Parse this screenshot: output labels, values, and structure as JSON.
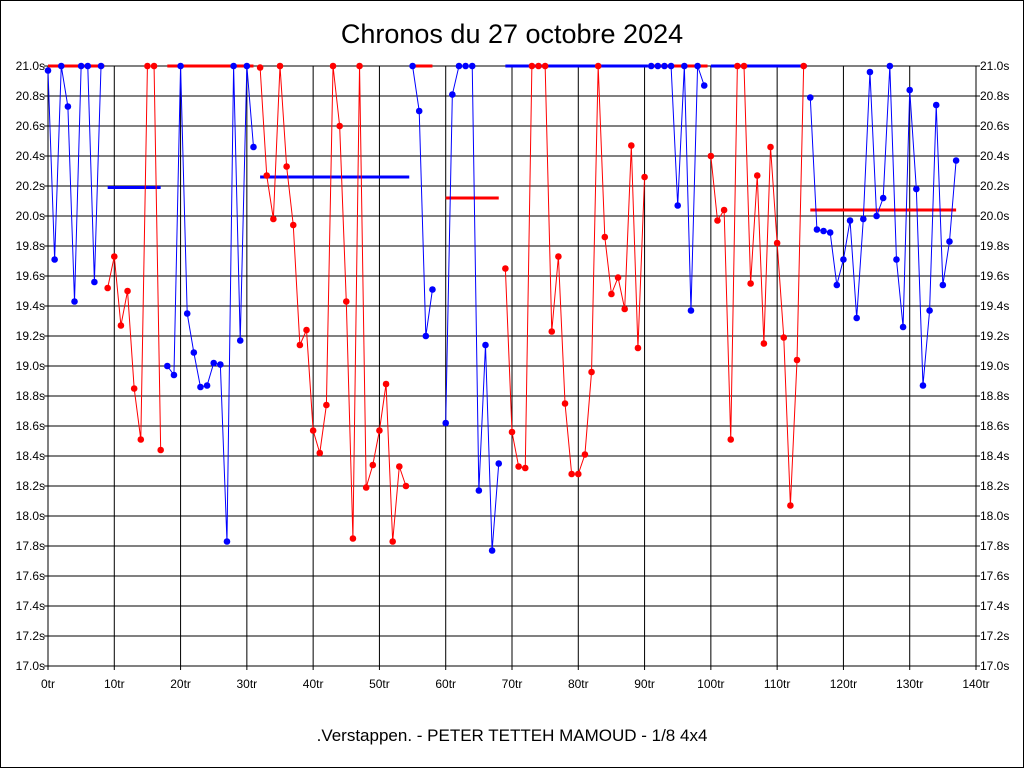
{
  "chart_data": {
    "type": "line",
    "title": "Chronos du 27 octobre 2024",
    "caption": ".Verstappen. - PETER TETTEH MAMOUD - 1/8 4x4",
    "xlabel": "",
    "ylabel": "",
    "xlim": [
      0,
      140
    ],
    "ylim": [
      17.0,
      21.0
    ],
    "grid": true,
    "legend": "none",
    "x_ticks": [
      {
        "value": 0,
        "label": "0tr"
      },
      {
        "value": 10,
        "label": "10tr"
      },
      {
        "value": 20,
        "label": "20tr"
      },
      {
        "value": 30,
        "label": "30tr"
      },
      {
        "value": 40,
        "label": "40tr"
      },
      {
        "value": 50,
        "label": "50tr"
      },
      {
        "value": 60,
        "label": "60tr"
      },
      {
        "value": 70,
        "label": "70tr"
      },
      {
        "value": 80,
        "label": "80tr"
      },
      {
        "value": 90,
        "label": "90tr"
      },
      {
        "value": 100,
        "label": "100tr"
      },
      {
        "value": 110,
        "label": "110tr"
      },
      {
        "value": 120,
        "label": "120tr"
      },
      {
        "value": 130,
        "label": "130tr"
      },
      {
        "value": 140,
        "label": "140tr"
      }
    ],
    "y_ticks": [
      {
        "value": 17.0,
        "label": "17.0s"
      },
      {
        "value": 17.2,
        "label": "17.2s"
      },
      {
        "value": 17.4,
        "label": "17.4s"
      },
      {
        "value": 17.6,
        "label": "17.6s"
      },
      {
        "value": 17.8,
        "label": "17.8s"
      },
      {
        "value": 18.0,
        "label": "18.0s"
      },
      {
        "value": 18.2,
        "label": "18.2s"
      },
      {
        "value": 18.4,
        "label": "18.4s"
      },
      {
        "value": 18.6,
        "label": "18.6s"
      },
      {
        "value": 18.8,
        "label": "18.8s"
      },
      {
        "value": 19.0,
        "label": "19.0s"
      },
      {
        "value": 19.2,
        "label": "19.2s"
      },
      {
        "value": 19.4,
        "label": "19.4s"
      },
      {
        "value": 19.6,
        "label": "19.6s"
      },
      {
        "value": 19.8,
        "label": "19.8s"
      },
      {
        "value": 20.0,
        "label": "20.0s"
      },
      {
        "value": 20.2,
        "label": "20.2s"
      },
      {
        "value": 20.4,
        "label": "20.4s"
      },
      {
        "value": 20.6,
        "label": "20.6s"
      },
      {
        "value": 20.8,
        "label": "20.8s"
      },
      {
        "value": 21.0,
        "label": "21.0s"
      }
    ],
    "series": [
      {
        "color": "#0000ff",
        "x": [
          0,
          1,
          2,
          3,
          4,
          5,
          6,
          7,
          8
        ],
        "y": [
          20.97,
          19.71,
          21.0,
          20.73,
          19.43,
          21.0,
          21.0,
          19.56,
          21.0
        ]
      },
      {
        "color": "#ff0000",
        "x": [
          9,
          10,
          11,
          12,
          13,
          14,
          15,
          16,
          17
        ],
        "y": [
          19.52,
          19.73,
          19.27,
          19.5,
          18.85,
          18.51,
          21.0,
          21.0,
          18.44
        ]
      },
      {
        "color": "#0000ff",
        "x": [
          18,
          19,
          20,
          21,
          22,
          23,
          24,
          25,
          26,
          27,
          28,
          29,
          30,
          31
        ],
        "y": [
          19.0,
          18.94,
          21.0,
          19.35,
          19.09,
          18.86,
          18.87,
          19.02,
          19.01,
          17.83,
          21.0,
          19.17,
          21.0,
          20.46
        ]
      },
      {
        "color": "#ff0000",
        "x": [
          32,
          33,
          34,
          35,
          36,
          37,
          38,
          39,
          40,
          41,
          42,
          43,
          44,
          45,
          46,
          47,
          48,
          49,
          50,
          51,
          52,
          53,
          54
        ],
        "y": [
          20.99,
          20.27,
          19.98,
          21.0,
          20.33,
          19.94,
          19.14,
          19.24,
          18.57,
          18.42,
          18.74,
          21.0,
          20.6,
          19.43,
          17.85,
          21.0,
          18.19,
          18.34,
          18.57,
          18.88,
          17.83,
          18.33,
          18.2
        ]
      },
      {
        "color": "#0000ff",
        "x": [
          55,
          56,
          57,
          58
        ],
        "y": [
          21.0,
          20.7,
          19.2,
          19.51
        ]
      },
      {
        "color": "#0000ff",
        "x": [
          60,
          61,
          62,
          63,
          64,
          65,
          66,
          67,
          68
        ],
        "y": [
          18.62,
          20.81,
          21.0,
          21.0,
          21.0,
          18.17,
          19.14,
          17.77,
          18.35
        ]
      },
      {
        "color": "#ff0000",
        "x": [
          69,
          70,
          71,
          72,
          73,
          74,
          75,
          76,
          77,
          78,
          79,
          80,
          81,
          82,
          83,
          84,
          85,
          86,
          87,
          88,
          89,
          90
        ],
        "y": [
          19.65,
          18.56,
          18.33,
          18.32,
          21.0,
          21.0,
          21.0,
          19.23,
          19.73,
          18.75,
          18.28,
          18.28,
          18.41,
          18.96,
          21.0,
          19.86,
          19.48,
          19.59,
          19.38,
          20.47,
          19.12,
          20.26
        ]
      },
      {
        "color": "#0000ff",
        "x": [
          91,
          92,
          93,
          94,
          95,
          96,
          97,
          98,
          99
        ],
        "y": [
          21.0,
          21.0,
          21.0,
          21.0,
          20.07,
          21.0,
          19.37,
          21.0,
          20.87
        ]
      },
      {
        "color": "#ff0000",
        "x": [
          100,
          101,
          102,
          103,
          104,
          105,
          106,
          107,
          108,
          109,
          110,
          111,
          112,
          113,
          114
        ],
        "y": [
          20.4,
          19.97,
          20.04,
          18.51,
          21.0,
          21.0,
          19.55,
          20.27,
          19.15,
          20.46,
          19.82,
          19.19,
          18.07,
          19.04,
          21.0
        ]
      },
      {
        "color": "#0000ff",
        "x": [
          115,
          116,
          117,
          118,
          119,
          120,
          121,
          122,
          123,
          124,
          125,
          126,
          127,
          128,
          129,
          130,
          131,
          132,
          133,
          134,
          135,
          136,
          137
        ],
        "y": [
          20.79,
          19.91,
          19.9,
          19.89,
          19.54,
          19.71,
          19.97,
          19.32,
          19.98,
          20.96,
          20.0,
          20.12,
          21.0,
          19.71,
          19.26,
          20.84,
          20.18,
          18.87,
          19.37,
          20.74,
          19.54,
          19.83,
          20.37
        ]
      }
    ],
    "segments": [
      {
        "color": "#ff0000",
        "x": [
          0,
          8.5
        ],
        "y": 21.0
      },
      {
        "color": "#0000ff",
        "x": [
          9,
          17
        ],
        "y": 20.19
      },
      {
        "color": "#ff0000",
        "x": [
          18,
          31
        ],
        "y": 21.0
      },
      {
        "color": "#0000ff",
        "x": [
          32,
          54.5
        ],
        "y": 20.26
      },
      {
        "color": "#ff0000",
        "x": [
          55,
          58
        ],
        "y": 21.0
      },
      {
        "color": "#ff0000",
        "x": [
          60,
          68
        ],
        "y": 20.12
      },
      {
        "color": "#0000ff",
        "x": [
          69,
          90.5
        ],
        "y": 21.0
      },
      {
        "color": "#ff0000",
        "x": [
          91,
          99.5
        ],
        "y": 21.0
      },
      {
        "color": "#0000ff",
        "x": [
          100,
          114.5
        ],
        "y": 21.0
      },
      {
        "color": "#ff0000",
        "x": [
          115,
          137
        ],
        "y": 20.04
      }
    ]
  }
}
